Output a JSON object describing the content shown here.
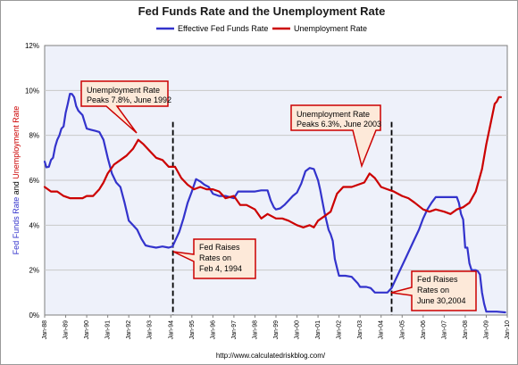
{
  "chart_data": {
    "type": "line",
    "title": "Fed Funds Rate and the Unemployment Rate",
    "ylabel": "Fed Funds Rate and Unemployment Rate",
    "ylabel_parts": [
      {
        "text": "Fed Funds Rate",
        "color": "#3333cc"
      },
      {
        "text": " and ",
        "color": "#000000"
      },
      {
        "text": "Unemployment Rate",
        "color": "#cc0000"
      }
    ],
    "ylim": [
      0,
      12
    ],
    "xlim": [
      1988.0,
      2010.0
    ],
    "y_ticks": [
      "0%",
      "2%",
      "4%",
      "6%",
      "8%",
      "10%",
      "12%"
    ],
    "x_ticks": [
      "Jan-88",
      "Jan-89",
      "Jan-90",
      "Jan-91",
      "Jan-92",
      "Jan-93",
      "Jan-94",
      "Jan-95",
      "Jan-96",
      "Jan-97",
      "Jan-98",
      "Jan-99",
      "Jan-00",
      "Jan-01",
      "Jan-02",
      "Jan-03",
      "Jan-04",
      "Jan-05",
      "Jan-06",
      "Jan-07",
      "Jan-08",
      "Jan-09",
      "Jan-10"
    ],
    "grid": true,
    "legend_position": "top",
    "series": [
      {
        "name": "Effective Fed Funds Rate",
        "color": "#3333cc",
        "x": [
          1988.0,
          1988.08,
          1988.2,
          1988.3,
          1988.4,
          1988.5,
          1988.6,
          1988.7,
          1988.8,
          1988.9,
          1989.0,
          1989.1,
          1989.2,
          1989.3,
          1989.4,
          1989.5,
          1989.6,
          1989.7,
          1989.8,
          1989.9,
          1990.0,
          1990.2,
          1990.4,
          1990.6,
          1990.8,
          1991.0,
          1991.2,
          1991.4,
          1991.6,
          1991.8,
          1992.0,
          1992.2,
          1992.4,
          1992.6,
          1992.8,
          1993.0,
          1993.3,
          1993.6,
          1993.9,
          1994.08,
          1994.25,
          1994.4,
          1994.6,
          1994.8,
          1995.0,
          1995.2,
          1995.4,
          1995.6,
          1995.8,
          1996.0,
          1996.3,
          1996.6,
          1997.0,
          1997.2,
          1997.5,
          1997.8,
          1998.0,
          1998.3,
          1998.6,
          1998.75,
          1998.9,
          1999.0,
          1999.2,
          1999.4,
          1999.6,
          1999.8,
          2000.0,
          2000.2,
          2000.4,
          2000.6,
          2000.8,
          2001.0,
          2001.1,
          2001.2,
          2001.3,
          2001.4,
          2001.5,
          2001.6,
          2001.7,
          2001.8,
          2001.9,
          2002.0,
          2002.3,
          2002.6,
          2002.9,
          2003.0,
          2003.3,
          2003.5,
          2003.7,
          2004.0,
          2004.3,
          2004.5,
          2004.7,
          2004.9,
          2005.2,
          2005.5,
          2005.8,
          2006.0,
          2006.2,
          2006.4,
          2006.6,
          2006.8,
          2007.0,
          2007.3,
          2007.6,
          2007.7,
          2007.8,
          2007.9,
          2008.0,
          2008.1,
          2008.2,
          2008.3,
          2008.4,
          2008.5,
          2008.6,
          2008.7,
          2008.8,
          2008.9,
          2009.0,
          2009.5,
          2009.9
        ],
        "values": [
          6.83,
          6.58,
          6.6,
          6.9,
          7.0,
          7.5,
          7.8,
          8.0,
          8.3,
          8.4,
          9.0,
          9.4,
          9.85,
          9.84,
          9.7,
          9.3,
          9.1,
          9.0,
          8.9,
          8.6,
          8.3,
          8.25,
          8.2,
          8.15,
          7.8,
          7.0,
          6.3,
          5.9,
          5.7,
          5.0,
          4.2,
          4.0,
          3.8,
          3.4,
          3.1,
          3.05,
          3.0,
          3.05,
          3.0,
          3.05,
          3.4,
          3.7,
          4.3,
          5.0,
          5.5,
          6.05,
          5.95,
          5.8,
          5.7,
          5.4,
          5.3,
          5.3,
          5.2,
          5.5,
          5.5,
          5.5,
          5.5,
          5.55,
          5.55,
          5.1,
          4.8,
          4.7,
          4.75,
          4.9,
          5.1,
          5.3,
          5.45,
          5.85,
          6.4,
          6.55,
          6.5,
          6.0,
          5.6,
          5.1,
          4.6,
          4.2,
          3.8,
          3.6,
          3.3,
          2.5,
          2.1,
          1.75,
          1.75,
          1.7,
          1.4,
          1.25,
          1.25,
          1.2,
          1.0,
          1.0,
          1.0,
          1.2,
          1.6,
          2.0,
          2.6,
          3.2,
          3.8,
          4.3,
          4.7,
          5.0,
          5.25,
          5.25,
          5.25,
          5.25,
          5.25,
          5.0,
          4.5,
          4.25,
          3.0,
          3.0,
          2.3,
          2.0,
          2.0,
          2.0,
          1.95,
          1.8,
          1.0,
          0.5,
          0.15,
          0.15,
          0.12
        ]
      },
      {
        "name": "Unemployment Rate",
        "color": "#cc0000",
        "x": [
          1988.0,
          1988.3,
          1988.6,
          1988.9,
          1989.2,
          1989.5,
          1989.8,
          1990.0,
          1990.3,
          1990.6,
          1990.8,
          1991.0,
          1991.3,
          1991.6,
          1991.9,
          1992.2,
          1992.45,
          1992.7,
          1993.0,
          1993.3,
          1993.6,
          1993.9,
          1994.2,
          1994.5,
          1994.8,
          1995.1,
          1995.4,
          1995.7,
          1996.0,
          1996.3,
          1996.6,
          1997.0,
          1997.3,
          1997.6,
          1998.0,
          1998.3,
          1998.6,
          1999.0,
          1999.3,
          1999.6,
          2000.0,
          2000.3,
          2000.6,
          2000.8,
          2001.0,
          2001.3,
          2001.6,
          2001.9,
          2002.2,
          2002.6,
          2002.9,
          2003.2,
          2003.45,
          2003.7,
          2004.0,
          2004.3,
          2004.6,
          2005.0,
          2005.3,
          2005.6,
          2006.0,
          2006.3,
          2006.6,
          2007.0,
          2007.3,
          2007.6,
          2007.9,
          2008.2,
          2008.5,
          2008.8,
          2009.0,
          2009.2,
          2009.4,
          2009.5,
          2009.6,
          2009.7
        ],
        "values": [
          5.7,
          5.5,
          5.5,
          5.3,
          5.2,
          5.2,
          5.2,
          5.3,
          5.3,
          5.6,
          5.9,
          6.3,
          6.7,
          6.9,
          7.1,
          7.4,
          7.8,
          7.6,
          7.3,
          7.0,
          6.9,
          6.6,
          6.6,
          6.1,
          5.8,
          5.6,
          5.7,
          5.6,
          5.6,
          5.5,
          5.2,
          5.3,
          4.9,
          4.9,
          4.7,
          4.3,
          4.5,
          4.3,
          4.3,
          4.2,
          4.0,
          3.9,
          4.0,
          3.9,
          4.2,
          4.4,
          4.6,
          5.4,
          5.7,
          5.7,
          5.8,
          5.9,
          6.3,
          6.1,
          5.7,
          5.6,
          5.5,
          5.3,
          5.2,
          5.0,
          4.7,
          4.6,
          4.7,
          4.6,
          4.5,
          4.7,
          4.8,
          5.0,
          5.5,
          6.5,
          7.6,
          8.5,
          9.4,
          9.5,
          9.7,
          9.7
        ]
      }
    ],
    "event_lines": [
      {
        "label": "Fed Raises Rates on Feb 4, 1994",
        "x": 1994.1
      },
      {
        "label": "Fed Raises Rates on June 30,2004",
        "x": 2004.5
      }
    ]
  },
  "annotations": {
    "unemp_1992": {
      "line1": "Unemployment Rate",
      "line2": "Peaks 7.8%, June 1992"
    },
    "unemp_2003": {
      "line1": "Unemployment Rate",
      "line2": "Peaks 6.3%, June 2003"
    },
    "fed_1994": {
      "line1": "Fed Raises",
      "line2": "Rates on",
      "line3": "Feb 4, 1994"
    },
    "fed_2004": {
      "line1": "Fed Raises",
      "line2": "Rates on",
      "line3": "June 30,2004"
    }
  },
  "source": "http://www.calculatedriskblog.com/",
  "colors": {
    "plot_bg": "#eef1fa",
    "grid": "#c8c8c8",
    "ann_fill": "#fde9d9",
    "ann_border": "#cc0000",
    "fed_line": "#3333cc",
    "unemp_line": "#cc0000"
  }
}
